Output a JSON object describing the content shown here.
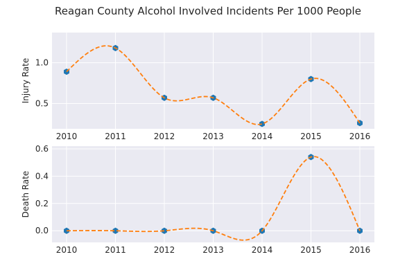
{
  "title": "Reagan County Alcohol Involved Incidents Per 1000 People",
  "colors": {
    "background": "#eaeaf2",
    "grid": "#ffffff",
    "marker": "#1f77b4",
    "line": "#ff7f0e"
  },
  "chart_data": [
    {
      "type": "line",
      "x": [
        2010,
        2011,
        2012,
        2013,
        2014,
        2015,
        2016
      ],
      "xticks": [
        "2010",
        "2011",
        "2012",
        "2013",
        "2014",
        "2015",
        "2016"
      ],
      "series": [
        {
          "values": [
            0.89,
            1.18,
            0.57,
            0.57,
            0.25,
            0.8,
            0.26
          ],
          "style": "hexagon markers with dashed smooth spline"
        }
      ],
      "xlabel": "",
      "ylabel": "Injury Rate",
      "yticks": [
        "0.5",
        "1.0"
      ],
      "ytick_values": [
        0.5,
        1.0
      ],
      "ylim": [
        0.19,
        1.37
      ],
      "grid": true
    },
    {
      "type": "line",
      "x": [
        2010,
        2011,
        2012,
        2013,
        2014,
        2015,
        2016
      ],
      "xticks": [
        "2010",
        "2011",
        "2012",
        "2013",
        "2014",
        "2015",
        "2016"
      ],
      "series": [
        {
          "values": [
            0.0,
            0.0,
            0.0,
            0.0,
            0.0,
            0.54,
            0.0
          ],
          "style": "hexagon markers with dashed smooth spline"
        }
      ],
      "xlabel": "",
      "ylabel": "Death Rate",
      "yticks": [
        "0.0",
        "0.2",
        "0.4",
        "0.6"
      ],
      "ytick_values": [
        0.0,
        0.2,
        0.4,
        0.6
      ],
      "ylim": [
        -0.085,
        0.62
      ],
      "grid": true
    }
  ]
}
